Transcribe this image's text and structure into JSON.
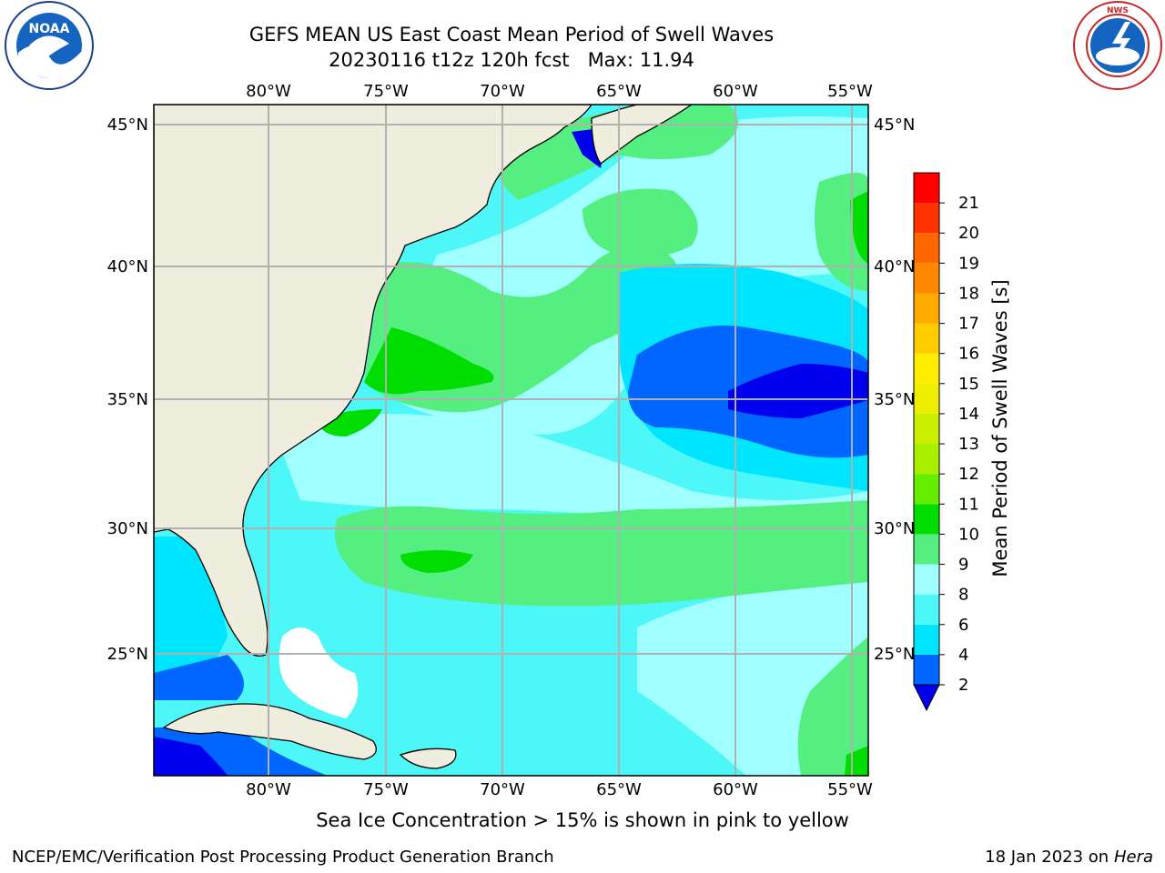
{
  "title": {
    "line1": "GEFS MEAN US East Coast Mean Period of Swell Waves",
    "line2": "20230116 t12z 120h fcst   Max: 11.94"
  },
  "map": {
    "lon_ticks": [
      "80°W",
      "75°W",
      "70°W",
      "65°W",
      "60°W",
      "55°W"
    ],
    "lat_ticks": [
      "45°N",
      "40°N",
      "35°N",
      "30°N",
      "25°N"
    ],
    "land_color": "#efedde",
    "grid_color": "#b0b0b0"
  },
  "colorbar": {
    "label": "Mean Period of Swell Waves [s]",
    "levels": [
      "2",
      "4",
      "6",
      "8",
      "9",
      "10",
      "11",
      "12",
      "13",
      "14",
      "15",
      "16",
      "17",
      "18",
      "19",
      "20",
      "21"
    ],
    "colors": [
      "#0066ff",
      "#00e5ff",
      "#4df7f7",
      "#a0ffff",
      "#55ee80",
      "#00dd00",
      "#66ee00",
      "#aaee00",
      "#ccee00",
      "#eeee00",
      "#ffee00",
      "#ffcc00",
      "#ffaa00",
      "#ff8800",
      "#ff6600",
      "#ff3300",
      "#ff0000"
    ],
    "under_color": "#0000ee"
  },
  "footer": {
    "note": "Sea Ice Concentration > 15% is shown in pink to yellow",
    "credit": "NCEP/EMC/Verification Post Processing Product Generation Branch",
    "date": "18 Jan 2023 on ",
    "machine": "Hera"
  },
  "logos": {
    "left": "NOAA",
    "right": "NATIONAL WEATHER SERVICE"
  }
}
